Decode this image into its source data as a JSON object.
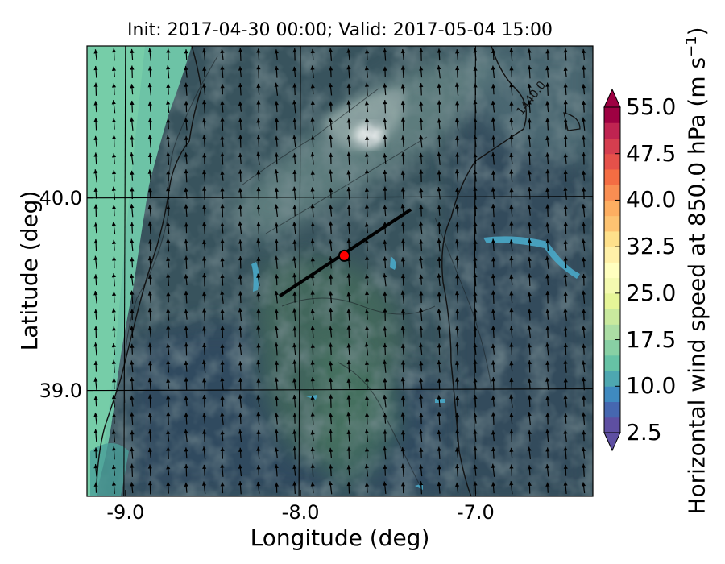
{
  "title": "Init: 2017-04-30 00:00; Valid: 2017-05-04 15:00",
  "axes": {
    "xlabel": "Longitude (deg)",
    "ylabel": "Latitude (deg)",
    "xticks": [
      {
        "value": -9.0,
        "label": "-9.0"
      },
      {
        "value": -8.0,
        "label": "-8.0"
      },
      {
        "value": -7.0,
        "label": "-7.0"
      }
    ],
    "yticks": [
      {
        "value": 40.0,
        "label": "40.0"
      },
      {
        "value": 39.0,
        "label": "39.0"
      }
    ],
    "xlim": [
      -9.22,
      -6.33
    ],
    "ylim": [
      38.45,
      40.79
    ]
  },
  "colorbar": {
    "label_prefix": "Horizontal wind speed at 850.0 hPa (m s",
    "label_exp": "−1",
    "label_suffix": ")",
    "range": [
      2.5,
      55.0
    ],
    "step": 2.5,
    "extend": "both",
    "ticks": [
      "55.0",
      "47.5",
      "40.0",
      "32.5",
      "25.0",
      "17.5",
      "10.0",
      "2.5"
    ],
    "colors": [
      "#5e4fa2",
      "#4667b0",
      "#3f8ac0",
      "#4ea7b0",
      "#66c2a5",
      "#88d0a4",
      "#abdda4",
      "#c9e99e",
      "#e6f598",
      "#f4fab0",
      "#ffffbf",
      "#fff0a8",
      "#fee08b",
      "#fdc372",
      "#fdae61",
      "#f98e52",
      "#f46d43",
      "#e5514a",
      "#d53e4f",
      "#bf2451",
      "#9e0142"
    ]
  },
  "chart_data": {
    "type": "map",
    "title": "Init: 2017-04-30 00:00; Valid: 2017-05-04 15:00",
    "xlabel": "Longitude (deg)",
    "ylabel": "Latitude (deg)",
    "xlim": [
      -9.22,
      -6.33
    ],
    "ylim": [
      38.45,
      40.79
    ],
    "grid": true,
    "field": "Horizontal wind speed at 850.0 hPa",
    "units": "m s^-1",
    "wind_direction": "northerly (arrows point north)",
    "contour_label": "1440.0",
    "cross_section_line": {
      "start": {
        "lon": -8.12,
        "lat": 39.49
      },
      "end": {
        "lon": -7.37,
        "lat": 39.94
      }
    },
    "marker": {
      "lon": -7.75,
      "lat": 39.7,
      "color": "#ff0000"
    }
  }
}
